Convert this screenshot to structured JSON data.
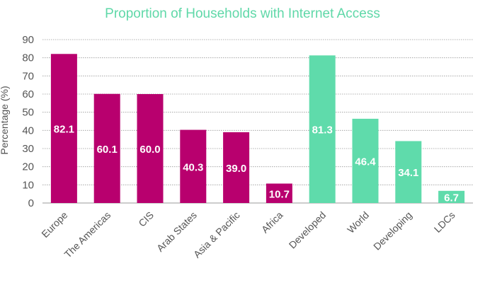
{
  "chart_data": {
    "type": "bar",
    "title": "Proportion of Households with Internet Access",
    "xlabel": "",
    "ylabel": "Percentage (%)",
    "ylim": [
      0,
      90
    ],
    "yticks": [
      0,
      10,
      20,
      30,
      40,
      50,
      60,
      70,
      80,
      90
    ],
    "grid": true,
    "categories": [
      "Europe",
      "The Americas",
      "CIS",
      "Arab States",
      "Asia & Pacific",
      "Africa",
      "Developed",
      "World",
      "Developing",
      "LDCs"
    ],
    "values": [
      82.1,
      60.1,
      60.0,
      40.3,
      39.0,
      10.7,
      81.3,
      46.4,
      34.1,
      6.7
    ],
    "data_labels": [
      "82.1",
      "60.1",
      "60.0",
      "40.3",
      "39.0",
      "10.7",
      "81.3",
      "46.4",
      "34.1",
      "6.7"
    ],
    "colors": [
      "#b8006e",
      "#b8006e",
      "#b8006e",
      "#b8006e",
      "#b8006e",
      "#b8006e",
      "#5fdbab",
      "#5fdbab",
      "#5fdbab",
      "#5fdbab"
    ],
    "title_color": "#5fd8a8",
    "label_color": "#ffffff",
    "axis_text_color": "#555555",
    "grid_color": "#999999"
  }
}
